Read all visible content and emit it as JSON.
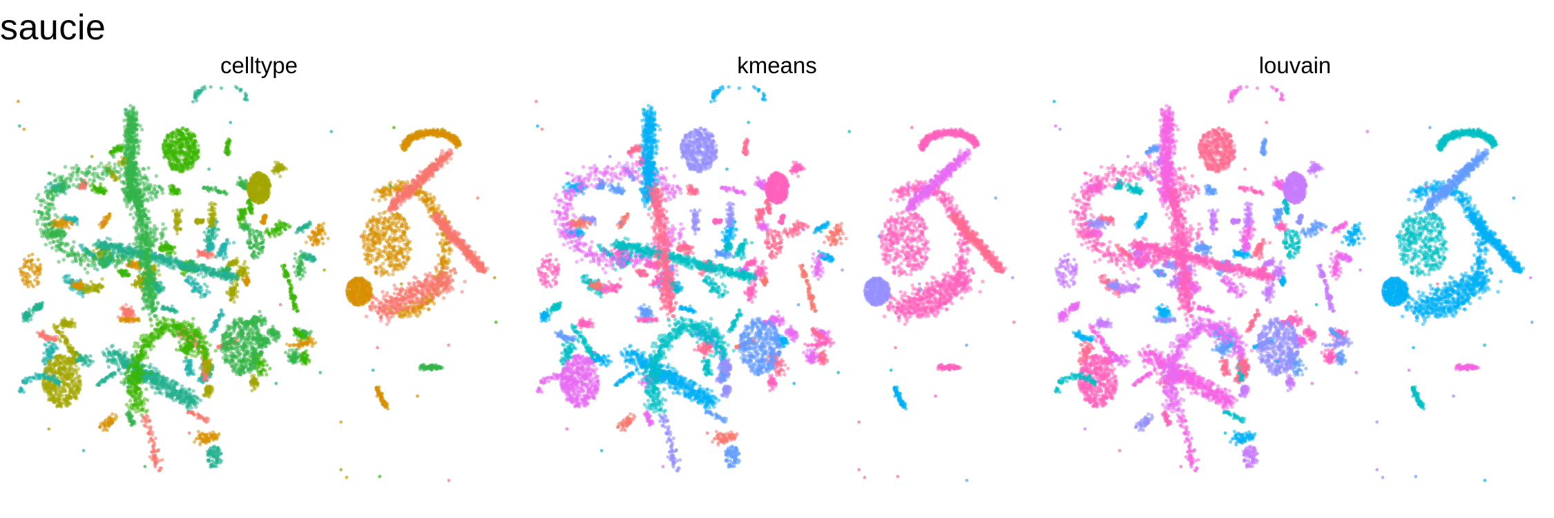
{
  "title": "saucie",
  "chart_data": [
    {
      "type": "scatter",
      "title": "celltype",
      "xlabel": "",
      "ylabel": "",
      "grid": false,
      "legend": "none",
      "palette": [
        "#34B44A",
        "#22B08E",
        "#20B2AA",
        "#A3A500",
        "#D89000",
        "#F8766D",
        "#39B600"
      ],
      "major_palette": [
        0,
        0,
        1,
        6,
        3,
        0,
        1,
        6,
        0,
        3
      ],
      "right_palette": [
        4,
        4,
        5,
        5,
        4,
        5,
        4
      ]
    },
    {
      "type": "scatter",
      "title": "kmeans",
      "xlabel": "",
      "ylabel": "",
      "grid": false,
      "legend": "none",
      "palette": [
        "#E76BF3",
        "#00B0F6",
        "#00BFC4",
        "#9590FF",
        "#FF62BC",
        "#F8766D",
        "#619CFF",
        "#FF6C91"
      ],
      "major_palette": [
        0,
        1,
        2,
        3,
        4,
        7,
        1,
        2,
        6,
        0
      ],
      "right_palette": [
        4,
        4,
        4,
        0,
        4,
        7,
        3
      ]
    },
    {
      "type": "scatter",
      "title": "louvain",
      "xlabel": "",
      "ylabel": "",
      "grid": false,
      "legend": "none",
      "palette": [
        "#FF62BC",
        "#F564E3",
        "#E76BF3",
        "#FF6C91",
        "#C77CFF",
        "#9590FF",
        "#00B0F6",
        "#00BFC4",
        "#619CFF"
      ],
      "major_palette": [
        0,
        1,
        0,
        3,
        4,
        0,
        1,
        2,
        5,
        0
      ],
      "right_palette": [
        6,
        7,
        6,
        8,
        7,
        6,
        6
      ]
    }
  ]
}
